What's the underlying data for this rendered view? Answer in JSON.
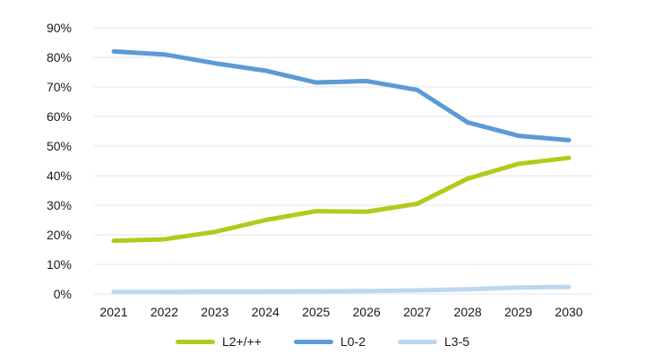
{
  "chart_data": {
    "type": "line",
    "title": "",
    "xlabel": "",
    "ylabel": "",
    "categories": [
      "2021",
      "2022",
      "2023",
      "2024",
      "2025",
      "2026",
      "2027",
      "2028",
      "2029",
      "2030"
    ],
    "series": [
      {
        "name": "L2+/++",
        "color": "#b5c91c",
        "values": [
          18,
          18.5,
          21,
          25,
          28,
          27.8,
          30.5,
          39,
          44,
          46
        ]
      },
      {
        "name": "L0-2",
        "color": "#5b9bd5",
        "values": [
          82,
          81,
          78,
          75.5,
          71.5,
          72,
          69,
          58,
          53.5,
          52
        ]
      },
      {
        "name": "L3-5",
        "color": "#bdd7ee",
        "values": [
          0.7,
          0.7,
          0.8,
          0.8,
          0.9,
          1,
          1.2,
          1.6,
          2.2,
          2.4
        ]
      }
    ],
    "y_ticks": [
      {
        "label": "90%",
        "value": 90
      },
      {
        "label": "80%",
        "value": 80
      },
      {
        "label": "70%",
        "value": 70
      },
      {
        "label": "60%",
        "value": 60
      },
      {
        "label": "50%",
        "value": 50
      },
      {
        "label": "40%",
        "value": 40
      },
      {
        "label": "30%",
        "value": 30
      },
      {
        "label": "20%",
        "value": 20
      },
      {
        "label": "10%",
        "value": 10
      },
      {
        "label": "0%",
        "value": 0
      }
    ],
    "ylim": [
      0,
      90
    ],
    "grid": "horizontal",
    "legend_position": "bottom",
    "legend": [
      "L2+/++",
      "L0-2",
      "L3-5"
    ]
  },
  "colors": {
    "grid": "#e4e6e8",
    "text": "#191919",
    "background": "#ffffff"
  }
}
